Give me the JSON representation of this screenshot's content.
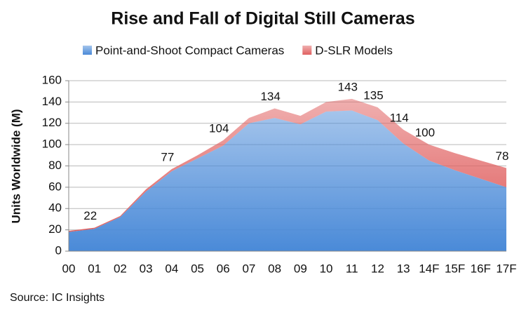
{
  "chart_data": {
    "type": "stacked_area",
    "title": "Rise and Fall of Digital Still Cameras",
    "y_axis_label": "Units Worldwide (M)",
    "source": "Source: IC Insights",
    "categories": [
      "00",
      "01",
      "02",
      "03",
      "04",
      "05",
      "06",
      "07",
      "08",
      "09",
      "10",
      "11",
      "12",
      "13",
      "14F",
      "15F",
      "16F",
      "17F"
    ],
    "series": [
      {
        "name": "Point-and-Shoot Compact Cameras",
        "color": "#4a8ad8",
        "values": [
          18,
          21,
          32,
          56,
          75,
          87,
          99,
          120,
          125,
          119,
          131,
          132,
          123,
          101,
          85,
          76,
          68,
          60
        ]
      },
      {
        "name": "D-SLR Models",
        "color": "#e06060",
        "values": [
          1,
          1,
          1,
          2,
          2,
          3,
          5,
          5,
          9,
          8,
          9,
          11,
          12,
          13,
          15,
          16,
          17,
          18
        ]
      }
    ],
    "total_labels": [
      null,
      22,
      null,
      null,
      77,
      null,
      104,
      null,
      134,
      null,
      null,
      143,
      135,
      114,
      100,
      null,
      null,
      78
    ],
    "ylim": [
      0,
      160
    ],
    "yticks": [
      0,
      20,
      40,
      60,
      80,
      100,
      120,
      140,
      160
    ],
    "grid": true
  }
}
